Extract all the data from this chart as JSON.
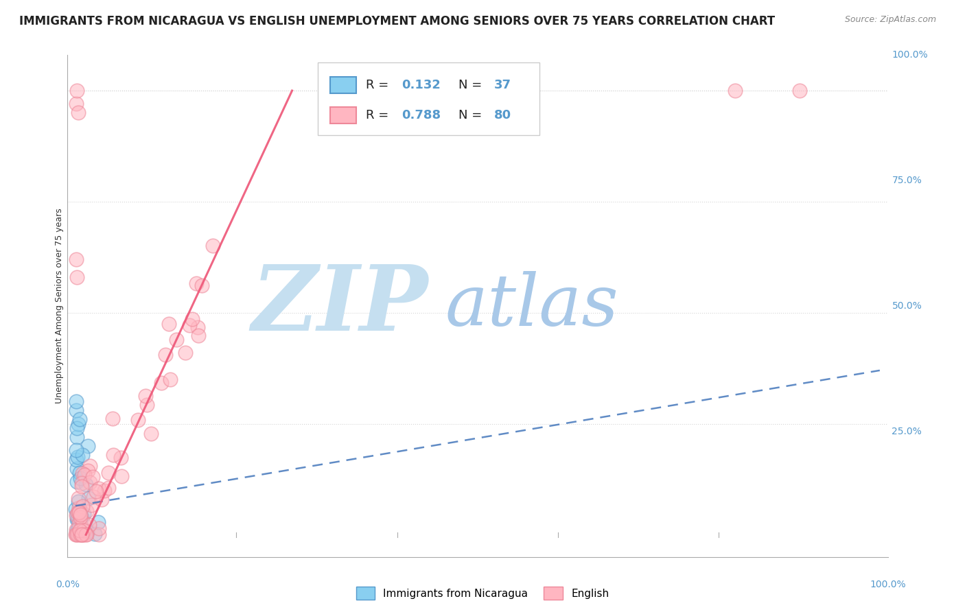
{
  "title": "IMMIGRANTS FROM NICARAGUA VS ENGLISH UNEMPLOYMENT AMONG SENIORS OVER 75 YEARS CORRELATION CHART",
  "source": "Source: ZipAtlas.com",
  "ylabel": "Unemployment Among Seniors over 75 years",
  "watermark_zip": "ZIP",
  "watermark_atlas": "atlas",
  "watermark_color_zip": "#c8dff0",
  "watermark_color_atlas": "#b0cce8",
  "background_color": "#ffffff",
  "R_blue": 0.132,
  "N_blue": 37,
  "R_pink": 0.788,
  "N_pink": 80,
  "blue_color_face": "#89CFF0",
  "blue_color_edge": "#5599CC",
  "pink_color_face": "#FFB6C1",
  "pink_color_edge": "#EE8899",
  "blue_line_color": "#4477BB",
  "pink_line_color": "#EE5577",
  "grid_color": "#cccccc",
  "tick_color": "#5599CC",
  "title_fontsize": 12,
  "source_fontsize": 9,
  "label_fontsize": 9,
  "tick_fontsize": 10,
  "legend_fontsize": 13
}
